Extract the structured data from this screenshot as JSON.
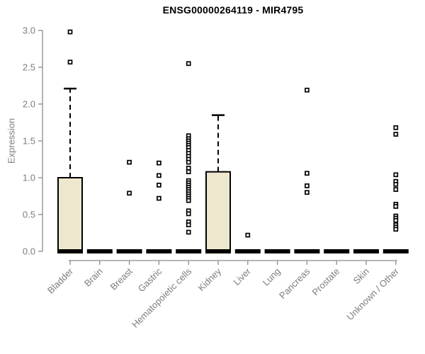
{
  "window": {
    "background": "#ffffff"
  },
  "chart_data": {
    "type": "boxplot",
    "title": "ENSG00000264119 - MIR4795",
    "ylabel": "Expression",
    "xlabel": "",
    "ylim": [
      0.0,
      3.0
    ],
    "yticks": [
      0.0,
      0.5,
      1.0,
      1.5,
      2.0,
      2.5,
      3.0
    ],
    "grid": false,
    "legend": "none",
    "categories": [
      "Bladder",
      "Brain",
      "Breast",
      "Gastric",
      "Hematopoietic cells",
      "Kidney",
      "Liver",
      "Lung",
      "Pancreas",
      "Prostate",
      "Skin",
      "Unknown / Other"
    ],
    "boxes": [
      {
        "label": "Bladder",
        "q1": 0.0,
        "median": 0.0,
        "q3": 1.0,
        "whisker_high": 2.21,
        "outliers": [
          2.98,
          2.57
        ]
      },
      {
        "label": "Brain",
        "q1": 0.0,
        "median": 0.0,
        "q3": 0.0,
        "whisker_high": null,
        "outliers": []
      },
      {
        "label": "Breast",
        "q1": 0.0,
        "median": 0.0,
        "q3": 0.0,
        "whisker_high": null,
        "outliers": [
          1.21,
          0.79
        ]
      },
      {
        "label": "Gastric",
        "q1": 0.0,
        "median": 0.0,
        "q3": 0.0,
        "whisker_high": null,
        "outliers": [
          1.2,
          1.03,
          0.9,
          0.72
        ]
      },
      {
        "label": "Hematopoietic cells",
        "q1": 0.0,
        "median": 0.0,
        "q3": 0.0,
        "whisker_high": null,
        "outliers": [
          2.55,
          1.57,
          1.53,
          1.5,
          1.47,
          1.44,
          1.41,
          1.37,
          1.33,
          1.29,
          1.25,
          1.21,
          1.13,
          1.08,
          0.96,
          0.93,
          0.9,
          0.87,
          0.84,
          0.81,
          0.78,
          0.75,
          0.72,
          0.69,
          0.55,
          0.51,
          0.4,
          0.36,
          0.26
        ]
      },
      {
        "label": "Kidney",
        "q1": 0.0,
        "median": 0.0,
        "q3": 1.08,
        "whisker_high": 1.85,
        "outliers": []
      },
      {
        "label": "Liver",
        "q1": 0.0,
        "median": 0.0,
        "q3": 0.0,
        "whisker_high": null,
        "outliers": [
          0.22
        ]
      },
      {
        "label": "Lung",
        "q1": 0.0,
        "median": 0.0,
        "q3": 0.0,
        "whisker_high": null,
        "outliers": []
      },
      {
        "label": "Pancreas",
        "q1": 0.0,
        "median": 0.0,
        "q3": 0.0,
        "whisker_high": null,
        "outliers": [
          2.19,
          1.06,
          0.89,
          0.8
        ]
      },
      {
        "label": "Prostate",
        "q1": 0.0,
        "median": 0.0,
        "q3": 0.0,
        "whisker_high": null,
        "outliers": []
      },
      {
        "label": "Skin",
        "q1": 0.0,
        "median": 0.0,
        "q3": 0.0,
        "whisker_high": null,
        "outliers": []
      },
      {
        "label": "Unknown / Other",
        "q1": 0.0,
        "median": 0.0,
        "q3": 0.0,
        "whisker_high": null,
        "outliers": [
          1.68,
          1.59,
          1.04,
          0.95,
          0.91,
          0.84,
          0.64,
          0.61,
          0.48,
          0.45,
          0.42,
          0.36,
          0.33,
          0.3
        ]
      }
    ],
    "colors": {
      "box_fill": "#EDE8CD",
      "box_border": "#000000",
      "median": "#000000",
      "whisker": "#000000",
      "outlier_stroke": "#000000",
      "outlier_fill": "#ffffff",
      "axis_line": "#8a8a8a",
      "tick_label": "#7d7d7d",
      "title": "#000000",
      "background": "#ffffff"
    }
  }
}
